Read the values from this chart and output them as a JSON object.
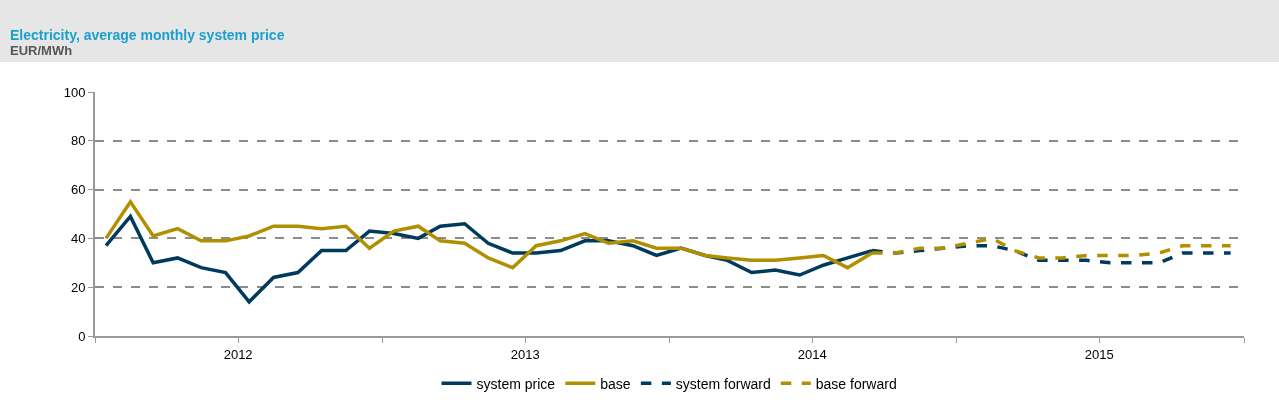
{
  "chart_data": {
    "type": "line",
    "title": "Electricity, average monthly system price",
    "subtitle": "EUR/MWh",
    "xlim": [
      "2012-01-01",
      "2016-01-01"
    ],
    "xticks": [
      {
        "value": "2012-01-01",
        "label": null
      },
      {
        "value": "2012-07-01",
        "label": "2012"
      },
      {
        "value": "2013-01-01",
        "label": null
      },
      {
        "value": "2013-07-01",
        "label": "2013"
      },
      {
        "value": "2014-01-01",
        "label": null
      },
      {
        "value": "2014-07-01",
        "label": "2014"
      },
      {
        "value": "2015-01-01",
        "label": null
      },
      {
        "value": "2015-07-01",
        "label": "2015"
      },
      {
        "value": "2016-01-01",
        "label": null
      }
    ],
    "ylim": [
      0,
      100
    ],
    "yticks": [
      0,
      20,
      40,
      60,
      80,
      100
    ],
    "grid": "y",
    "legend": "bottom",
    "series": [
      {
        "name": "system price",
        "color": "#003a5c",
        "line_style": "solid",
        "x": [
          "2012-01-15",
          "2012-02-15",
          "2012-03-15",
          "2012-04-15",
          "2012-05-15",
          "2012-06-15",
          "2012-07-15",
          "2012-08-15",
          "2012-09-15",
          "2012-10-15",
          "2012-11-15",
          "2012-12-15",
          "2013-01-15",
          "2013-02-15",
          "2013-03-15",
          "2013-04-15",
          "2013-05-15",
          "2013-06-15",
          "2013-07-15",
          "2013-08-15",
          "2013-09-15",
          "2013-10-15",
          "2013-11-15",
          "2013-12-15",
          "2014-01-15",
          "2014-02-15",
          "2014-03-15",
          "2014-04-15",
          "2014-05-15",
          "2014-06-15",
          "2014-07-15",
          "2014-08-15",
          "2014-09-15"
        ],
        "values": [
          37,
          49,
          30,
          32,
          28,
          26,
          14,
          24,
          26,
          35,
          35,
          43,
          42,
          40,
          45,
          46,
          38,
          34,
          34,
          35,
          39,
          39,
          37,
          33,
          36,
          33,
          31,
          26,
          27,
          25,
          29,
          32,
          35
        ]
      },
      {
        "name": "base",
        "color": "#b08f00",
        "line_style": "solid",
        "x": [
          "2012-01-15",
          "2012-02-15",
          "2012-03-15",
          "2012-04-15",
          "2012-05-15",
          "2012-06-15",
          "2012-07-15",
          "2012-08-15",
          "2012-09-15",
          "2012-10-15",
          "2012-11-15",
          "2012-12-15",
          "2013-01-15",
          "2013-02-15",
          "2013-03-15",
          "2013-04-15",
          "2013-05-15",
          "2013-06-15",
          "2013-07-15",
          "2013-08-15",
          "2013-09-15",
          "2013-10-15",
          "2013-11-15",
          "2013-12-15",
          "2014-01-15",
          "2014-02-15",
          "2014-03-15",
          "2014-04-15",
          "2014-05-15",
          "2014-06-15",
          "2014-07-15",
          "2014-08-15",
          "2014-09-15"
        ],
        "values": [
          40,
          55,
          41,
          44,
          39,
          39,
          41,
          45,
          45,
          44,
          45,
          36,
          43,
          45,
          39,
          38,
          32,
          28,
          37,
          39,
          42,
          38,
          39,
          36,
          36,
          33,
          32,
          31,
          31,
          32,
          33,
          28,
          34
        ]
      },
      {
        "name": "system forward",
        "color": "#003a5c",
        "line_style": "dashed",
        "x": [
          "2014-09-15",
          "2014-10-15",
          "2014-11-15",
          "2014-12-15",
          "2015-01-15",
          "2015-02-15",
          "2015-03-15",
          "2015-04-15",
          "2015-05-15",
          "2015-06-15",
          "2015-07-15",
          "2015-08-15",
          "2015-09-15",
          "2015-10-15",
          "2015-11-15",
          "2015-12-15"
        ],
        "values": [
          35,
          34,
          35,
          36,
          37,
          37,
          35,
          31,
          31,
          31,
          30,
          30,
          30,
          34,
          34,
          34
        ]
      },
      {
        "name": "base forward",
        "color": "#b08f00",
        "line_style": "dashed",
        "x": [
          "2014-09-15",
          "2014-10-15",
          "2014-11-15",
          "2014-12-15",
          "2015-01-15",
          "2015-02-15",
          "2015-03-15",
          "2015-04-15",
          "2015-05-15",
          "2015-06-15",
          "2015-07-15",
          "2015-08-15",
          "2015-09-15",
          "2015-10-15",
          "2015-11-15",
          "2015-12-15"
        ],
        "values": [
          34,
          34,
          36,
          36,
          38,
          40,
          35,
          32,
          32,
          33,
          33,
          33,
          34,
          37,
          37,
          37
        ]
      }
    ]
  }
}
